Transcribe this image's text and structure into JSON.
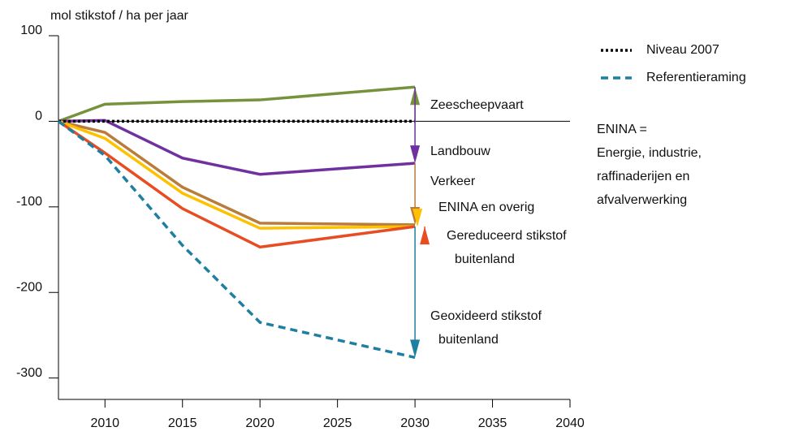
{
  "chart_data": {
    "type": "line",
    "y_label": "mol stikstof / ha per jaar",
    "x": [
      2007,
      2010,
      2015,
      2020,
      2030
    ],
    "xlim": [
      2007,
      2040
    ],
    "xticks": [
      2010,
      2015,
      2020,
      2025,
      2030,
      2035,
      2040
    ],
    "ylim": [
      -325,
      100
    ],
    "yticks": [
      100,
      0,
      -100,
      -200,
      -300
    ],
    "series": [
      {
        "name": "Niveau 2007",
        "color": "#000000",
        "style": "dotted",
        "values": [
          0,
          0,
          0,
          0,
          0
        ]
      },
      {
        "name": "Referentieraming",
        "color": "#1f7fa0",
        "style": "dashed",
        "values": [
          0,
          -40,
          -145,
          -235,
          -276
        ]
      }
    ],
    "contributions": [
      {
        "color": "#76923c",
        "values": [
          0,
          20,
          23,
          25,
          40
        ]
      },
      {
        "color": "#7030a0",
        "values": [
          0,
          1,
          -43,
          -62,
          -49
        ]
      },
      {
        "color": "#b97c3a",
        "values": [
          0,
          -13,
          -77,
          -119,
          -121
        ]
      },
      {
        "color": "#ffc000",
        "values": [
          0,
          -20,
          -84,
          -125,
          -123
        ]
      },
      {
        "color": "#e84c22",
        "values": [
          0,
          -37,
          -102,
          -147,
          -123
        ]
      }
    ],
    "annotations": [
      {
        "lines": [
          "Zeescheepvaart"
        ]
      },
      {
        "lines": [
          "Landbouw"
        ]
      },
      {
        "lines": [
          "Verkeer"
        ]
      },
      {
        "lines": [
          "ENINA en overig"
        ]
      },
      {
        "lines": [
          "Gereduceerd stikstof",
          "buitenland"
        ]
      },
      {
        "lines": [
          "Geoxideerd stikstof",
          "buitenland"
        ]
      },
      {
        "lines": [
          "ENINA =",
          "Energie, industrie,",
          "raffinaderijen en",
          "afvalverwerking"
        ]
      }
    ]
  }
}
